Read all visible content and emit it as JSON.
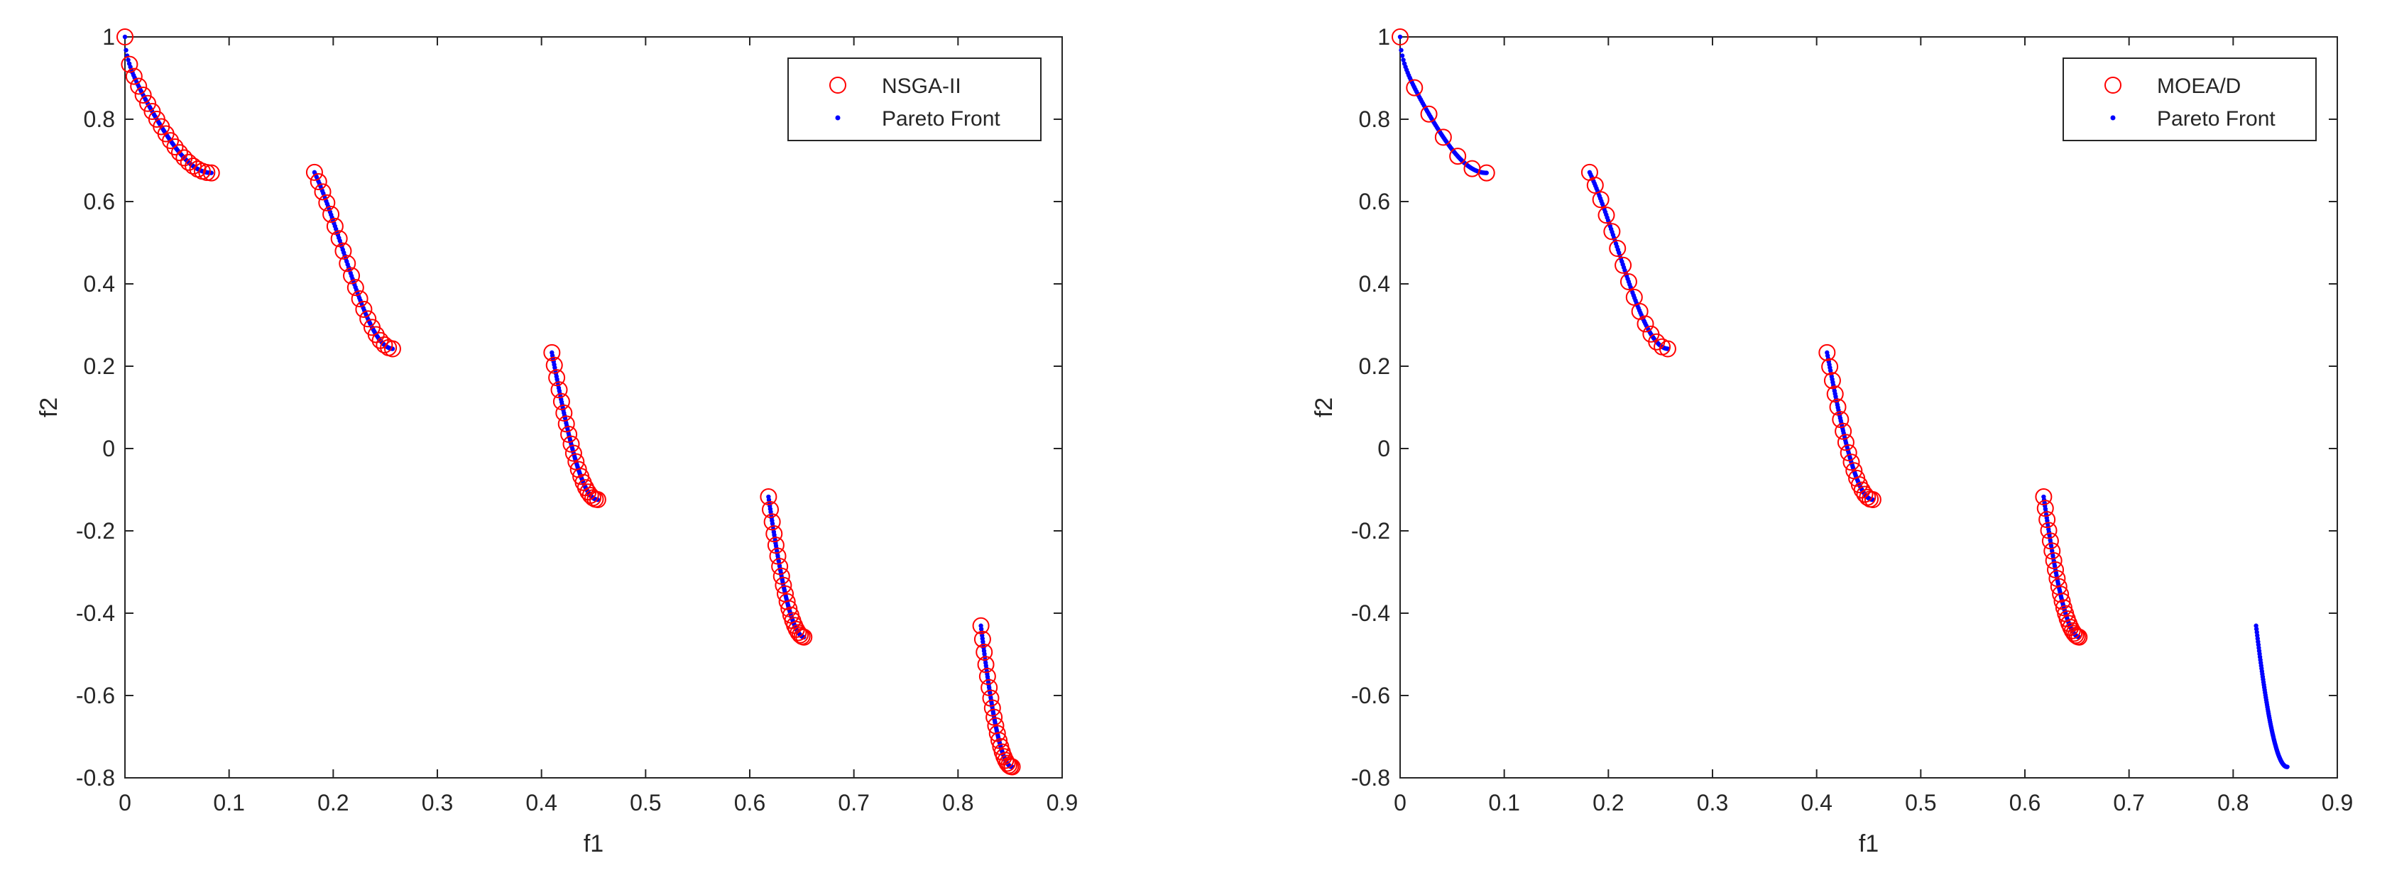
{
  "chart_data": [
    {
      "type": "scatter",
      "title": "",
      "xlabel": "f1",
      "ylabel": "f2",
      "xlim": [
        0,
        0.9
      ],
      "ylim": [
        -0.8,
        1
      ],
      "xticks": [
        0,
        0.1,
        0.2,
        0.3,
        0.4,
        0.5,
        0.6,
        0.7,
        0.8,
        0.9
      ],
      "xtick_labels": [
        "0",
        "0.1",
        "0.2",
        "0.3",
        "0.4",
        "0.5",
        "0.6",
        "0.7",
        "0.8",
        "0.9"
      ],
      "yticks": [
        1,
        0.8,
        0.6,
        0.4,
        0.2,
        0,
        -0.2,
        -0.4,
        -0.6,
        -0.8
      ],
      "ytick_labels": [
        "1",
        "0.8",
        "0.6",
        "0.4",
        "0.2",
        "0",
        "-0.2",
        "-0.4",
        "-0.6",
        "-0.8"
      ],
      "legend": {
        "placement": "top-right",
        "entries": [
          "NSGA-II",
          "Pareto Front"
        ]
      },
      "series": [
        {
          "name": "NSGA-II",
          "marker": "circle-open",
          "color": "#ff0000",
          "coverage": [
            [
              0,
              0.083
            ],
            [
              0.182,
              0.257
            ],
            [
              0.41,
              0.454
            ],
            [
              0.618,
              0.652
            ],
            [
              0.822,
              0.852
            ]
          ],
          "points_per_segment": 20
        },
        {
          "name": "Pareto Front",
          "marker": "dot",
          "color": "#0000ff",
          "coverage": [
            [
              0,
              0.083
            ],
            [
              0.182,
              0.257
            ],
            [
              0.41,
              0.454
            ],
            [
              0.618,
              0.652
            ],
            [
              0.822,
              0.852
            ]
          ]
        }
      ]
    },
    {
      "type": "scatter",
      "title": "",
      "xlabel": "f1",
      "ylabel": "f2",
      "xlim": [
        0,
        0.9
      ],
      "ylim": [
        -0.8,
        1
      ],
      "xticks": [
        0,
        0.1,
        0.2,
        0.3,
        0.4,
        0.5,
        0.6,
        0.7,
        0.8,
        0.9
      ],
      "xtick_labels": [
        "0",
        "0.1",
        "0.2",
        "0.3",
        "0.4",
        "0.5",
        "0.6",
        "0.7",
        "0.8",
        "0.9"
      ],
      "yticks": [
        1,
        0.8,
        0.6,
        0.4,
        0.2,
        0,
        -0.2,
        -0.4,
        -0.6,
        -0.8
      ],
      "ytick_labels": [
        "1",
        "0.8",
        "0.6",
        "0.4",
        "0.2",
        "0",
        "-0.2",
        "-0.4",
        "-0.6",
        "-0.8"
      ],
      "legend": {
        "placement": "top-right",
        "entries": [
          "MOEA/D",
          "Pareto Front"
        ]
      },
      "series": [
        {
          "name": "MOEA/D",
          "marker": "circle-open",
          "color": "#ff0000",
          "coverage": [
            [
              0,
              0.083
            ],
            [
              0.182,
              0.257
            ],
            [
              0.41,
              0.454
            ],
            [
              0.618,
              0.652
            ]
          ],
          "points_per_segment": [
            7,
            15,
            18,
            22
          ]
        },
        {
          "name": "Pareto Front",
          "marker": "dot",
          "color": "#0000ff",
          "coverage": [
            [
              0,
              0.083
            ],
            [
              0.182,
              0.257
            ],
            [
              0.41,
              0.454
            ],
            [
              0.618,
              0.652
            ],
            [
              0.822,
              0.852
            ]
          ]
        }
      ]
    }
  ]
}
